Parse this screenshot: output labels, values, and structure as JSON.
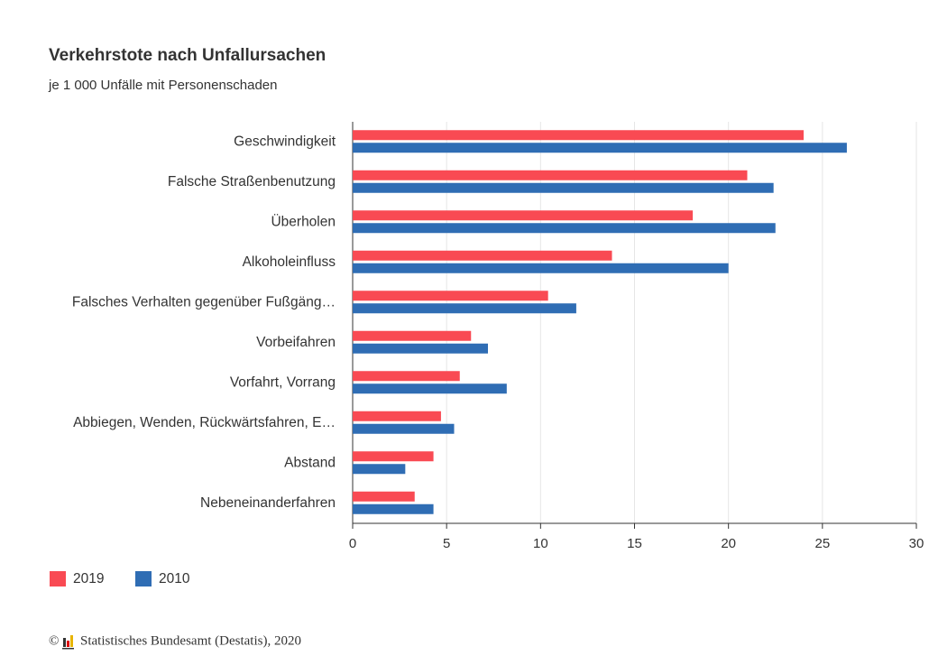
{
  "chart_data": {
    "type": "hbar",
    "title": "Verkehrstote nach Unfallursachen",
    "subtitle": "je 1 000 Unfälle mit Personenschaden",
    "categories": [
      "Geschwindigkeit",
      "Falsche Straßenbenutzung",
      "Überholen",
      "Alkoholeinfluss",
      "Falsches Verhalten gegenüber Fußgäng…",
      "Vorbeifahren",
      "Vorfahrt, Vorrang",
      "Abbiegen, Wenden, Rückwärtsfahren, E…",
      "Abstand",
      "Nebeneinanderfahren"
    ],
    "series": [
      {
        "name": "2019",
        "color": "#f94a53",
        "values": [
          24.0,
          21.0,
          18.1,
          13.8,
          10.4,
          6.3,
          5.7,
          4.7,
          4.3,
          3.3
        ]
      },
      {
        "name": "2010",
        "color": "#2f6db4",
        "values": [
          26.3,
          22.4,
          22.5,
          20.0,
          11.9,
          7.2,
          8.2,
          5.4,
          2.8,
          4.3
        ]
      }
    ],
    "xlim": [
      0,
      30
    ],
    "xticks": [
      0,
      5,
      10,
      15,
      20,
      25,
      30
    ],
    "grid": true,
    "legend": "bottom-left",
    "copyright": "©",
    "source": "Statistisches Bundesamt (Destatis), 2020"
  }
}
